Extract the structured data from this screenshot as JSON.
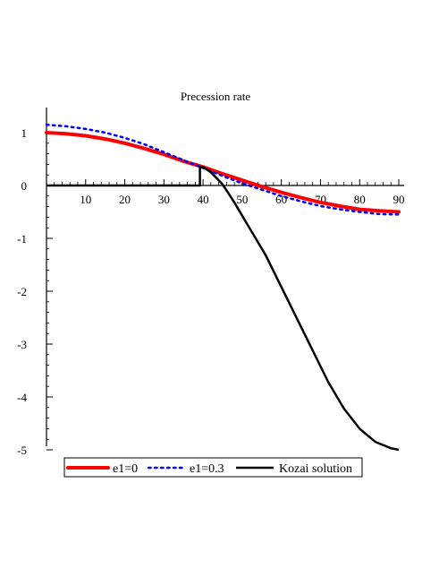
{
  "chart_data": {
    "type": "line",
    "title": "Precession rate",
    "xlabel": "",
    "ylabel": "",
    "xlim": [
      0,
      90
    ],
    "ylim": [
      -5,
      1.2
    ],
    "xticks": [
      10,
      20,
      30,
      40,
      50,
      60,
      70,
      80,
      90
    ],
    "yticks": [
      1,
      0,
      -1,
      -2,
      -3,
      -4,
      -5
    ],
    "xtick_labels": [
      "10",
      "20",
      "30",
      "40",
      "50",
      "60",
      "70",
      "80",
      "90"
    ],
    "ytick_labels": [
      "1",
      "0",
      "-1",
      "-2",
      "-3",
      "-4",
      "-5"
    ],
    "grid": false,
    "legend_position": "bottom",
    "series": [
      {
        "name": "e1=0",
        "color": "#ff0000",
        "style": "solid-thick",
        "x": [
          0,
          5,
          10,
          15,
          20,
          25,
          30,
          35,
          40,
          45,
          50,
          55,
          60,
          65,
          70,
          75,
          80,
          85,
          90
        ],
        "y": [
          1.0,
          0.98,
          0.94,
          0.88,
          0.8,
          0.7,
          0.59,
          0.46,
          0.35,
          0.22,
          0.1,
          -0.02,
          -0.13,
          -0.23,
          -0.32,
          -0.39,
          -0.45,
          -0.48,
          -0.5
        ]
      },
      {
        "name": "e1=0.3",
        "color": "#0000ff",
        "style": "dotted",
        "x": [
          0,
          5,
          10,
          15,
          20,
          25,
          30,
          35,
          40,
          45,
          50,
          55,
          60,
          65,
          70,
          75,
          80,
          85,
          90
        ],
        "y": [
          1.15,
          1.12,
          1.07,
          1.0,
          0.9,
          0.78,
          0.63,
          0.48,
          0.33,
          0.18,
          0.04,
          -0.08,
          -0.2,
          -0.3,
          -0.39,
          -0.45,
          -0.5,
          -0.54,
          -0.55
        ]
      },
      {
        "name": "Kozai solution",
        "color": "#000000",
        "style": "solid",
        "x": [
          0,
          39.2,
          39.2,
          40,
          42,
          45,
          48,
          52,
          56,
          60,
          64,
          68,
          72,
          76,
          80,
          84,
          88,
          90
        ],
        "y": [
          0,
          0,
          0.35,
          0.35,
          0.25,
          0.02,
          -0.32,
          -0.82,
          -1.32,
          -1.92,
          -2.52,
          -3.12,
          -3.72,
          -4.22,
          -4.6,
          -4.85,
          -4.97,
          -5.0
        ]
      }
    ]
  }
}
